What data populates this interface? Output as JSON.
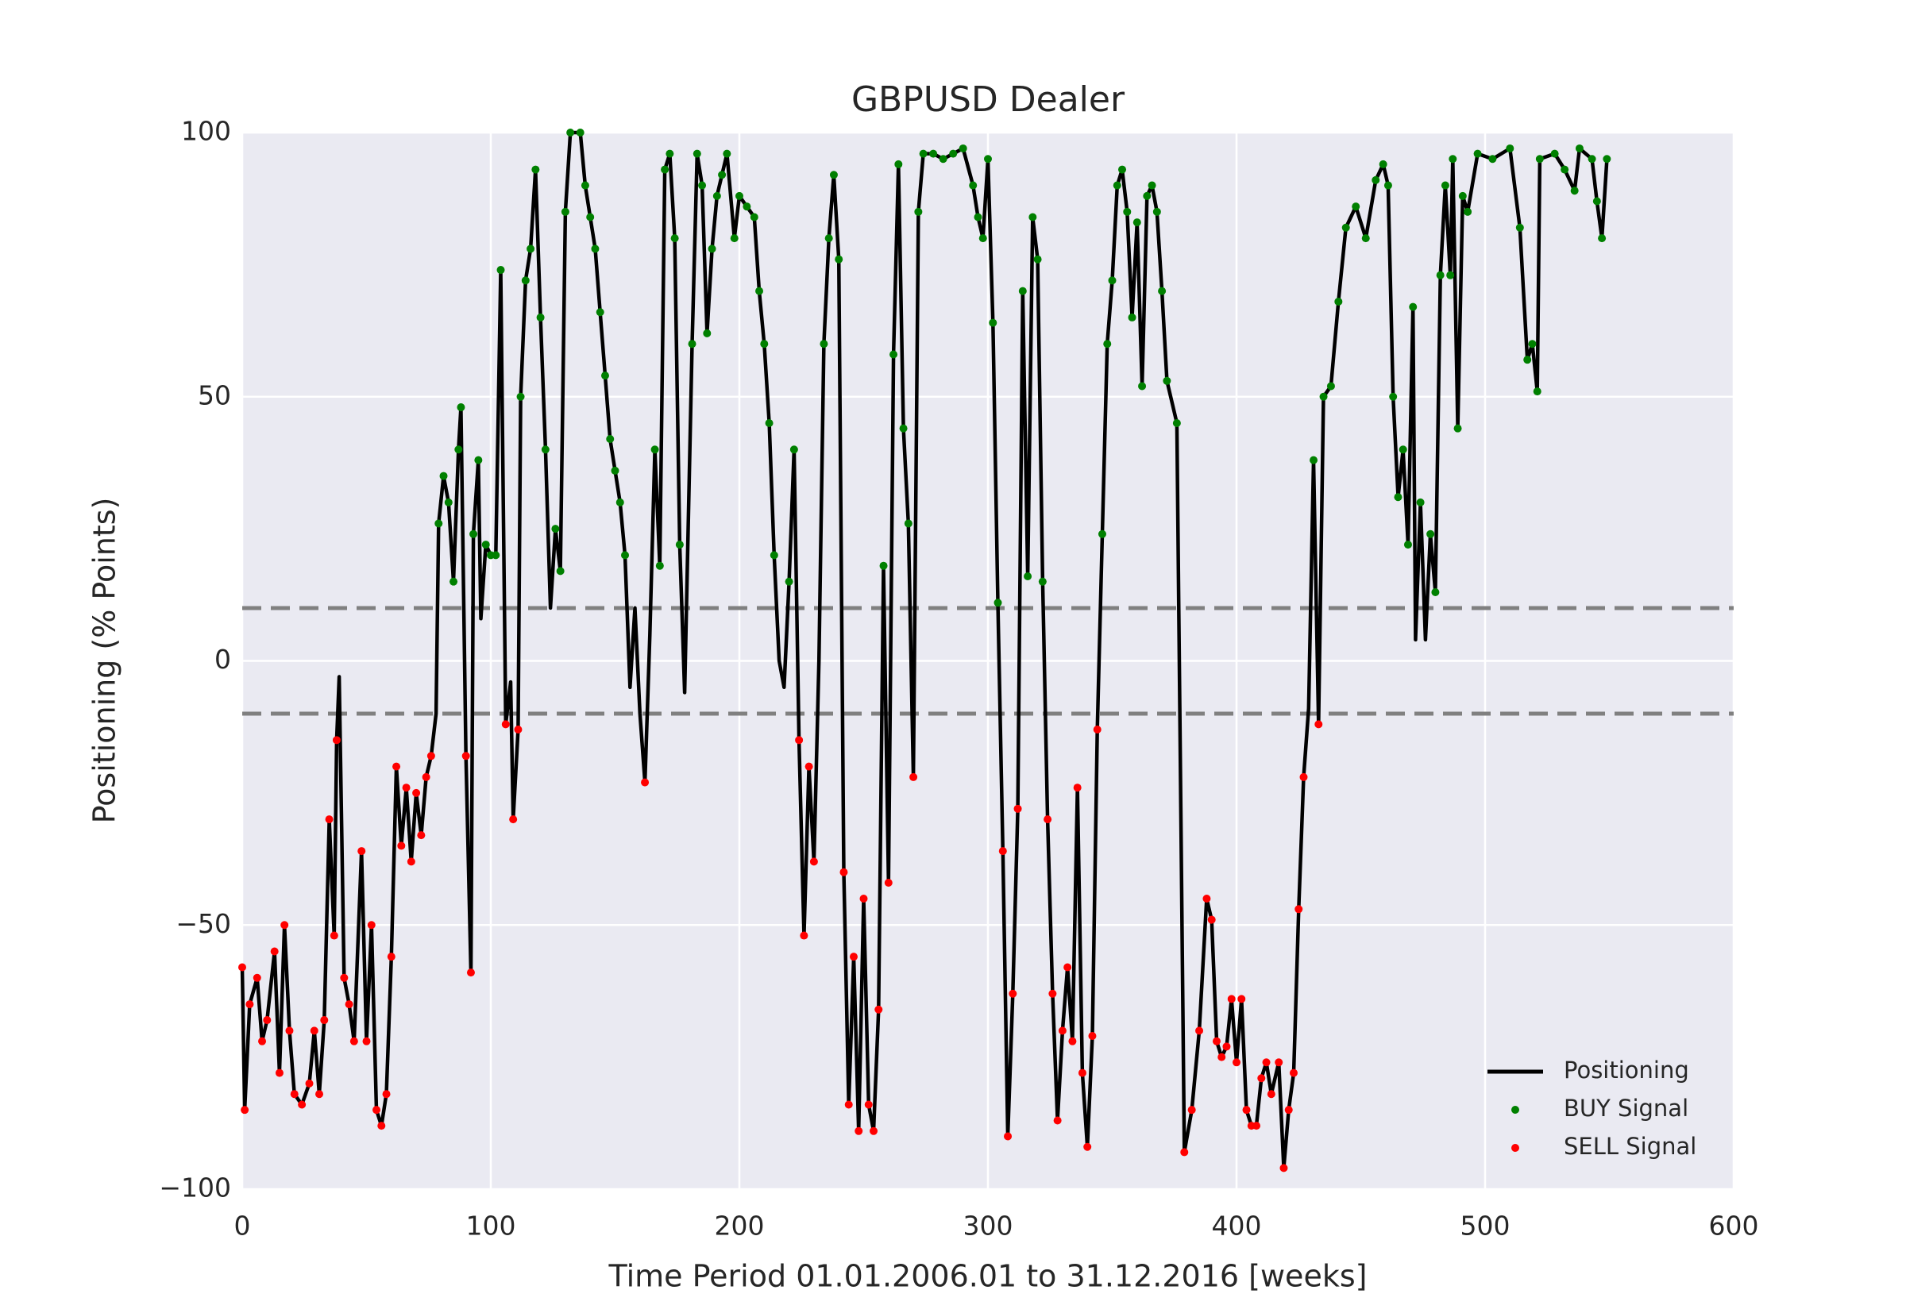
{
  "chart_data": {
    "type": "line",
    "title": "GBPUSD Dealer",
    "xlabel": "Time Period 01.01.2006.01 to 31.12.2016 [weeks]",
    "ylabel": "Positioning (% Points)",
    "xlim": [
      0,
      600
    ],
    "xticks": [
      0,
      100,
      200,
      300,
      400,
      500,
      600
    ],
    "ylim": [
      -100,
      100
    ],
    "yticks": [
      {
        "value": -100,
        "label": "−100"
      },
      {
        "value": -50,
        "label": "−50"
      },
      0,
      50,
      100
    ],
    "grid": true,
    "legend": "lower right",
    "hlines": [
      10,
      -10
    ],
    "hline_color": "#808080",
    "series": [
      {
        "name": "Positioning",
        "type": "line",
        "color": "#000000",
        "x": [
          0,
          1,
          3,
          6,
          8,
          10,
          13,
          15,
          17,
          19,
          21,
          24,
          27,
          29,
          31,
          33,
          35,
          37,
          38,
          39,
          41,
          43,
          45,
          48,
          50,
          52,
          54,
          56,
          58,
          60,
          62,
          64,
          66,
          68,
          70,
          72,
          74,
          76,
          78,
          79,
          81,
          83,
          85,
          87,
          88,
          90,
          92,
          93,
          95,
          96,
          98,
          100,
          102,
          104,
          106,
          108,
          109,
          111,
          112,
          114,
          116,
          118,
          120,
          122,
          124,
          126,
          128,
          130,
          132,
          136,
          138,
          140,
          142,
          144,
          146,
          148,
          150,
          152,
          154,
          156,
          158,
          160,
          162,
          164,
          166,
          168,
          170,
          172,
          174,
          176,
          178,
          181,
          183,
          185,
          187,
          189,
          191,
          193,
          195,
          198,
          200,
          203,
          206,
          208,
          210,
          212,
          214,
          216,
          218,
          220,
          222,
          224,
          226,
          228,
          230,
          232,
          234,
          236,
          238,
          240,
          242,
          244,
          246,
          248,
          250,
          252,
          254,
          256,
          258,
          260,
          262,
          264,
          266,
          268,
          270,
          272,
          274,
          278,
          282,
          286,
          290,
          294,
          296,
          298,
          300,
          302,
          304,
          306,
          308,
          310,
          312,
          314,
          316,
          318,
          320,
          322,
          324,
          326,
          328,
          330,
          332,
          334,
          336,
          338,
          340,
          342,
          344,
          346,
          348,
          350,
          352,
          354,
          356,
          358,
          360,
          362,
          364,
          366,
          368,
          370,
          372,
          376,
          379,
          382,
          385,
          388,
          390,
          392,
          394,
          396,
          398,
          400,
          402,
          404,
          406,
          408,
          410,
          412,
          414,
          417,
          419,
          421,
          423,
          425,
          427,
          429,
          431,
          433,
          435,
          438,
          441,
          444,
          448,
          452,
          456,
          459,
          461,
          463,
          465,
          467,
          469,
          471,
          472,
          474,
          476,
          478,
          480,
          482,
          484,
          486,
          487,
          489,
          491,
          493,
          497,
          503,
          510,
          514,
          517,
          519,
          521,
          522,
          528,
          532,
          536,
          538,
          543,
          545,
          547,
          549
        ],
        "values": [
          -58,
          -85,
          -65,
          -60,
          -72,
          -68,
          -55,
          -78,
          -50,
          -70,
          -82,
          -84,
          -80,
          -70,
          -82,
          -68,
          -30,
          -52,
          -15,
          -3,
          -60,
          -65,
          -72,
          -36,
          -72,
          -50,
          -85,
          -88,
          -82,
          -56,
          -20,
          -35,
          -24,
          -38,
          -25,
          -33,
          -22,
          -18,
          -10,
          26,
          35,
          30,
          15,
          40,
          48,
          -18,
          -59,
          24,
          38,
          8,
          22,
          20,
          20,
          74,
          -12,
          -4,
          -30,
          -13,
          50,
          72,
          78,
          93,
          65,
          40,
          10,
          25,
          17,
          85,
          100,
          100,
          90,
          84,
          78,
          66,
          54,
          42,
          36,
          30,
          20,
          -5,
          10,
          -10,
          -23,
          5,
          40,
          18,
          93,
          96,
          80,
          22,
          -6,
          60,
          96,
          90,
          62,
          78,
          88,
          92,
          96,
          80,
          88,
          86,
          84,
          70,
          60,
          45,
          20,
          0,
          -5,
          15,
          40,
          -15,
          -52,
          -20,
          -38,
          0,
          60,
          80,
          92,
          76,
          -40,
          -84,
          -56,
          -89,
          -45,
          -84,
          -89,
          -66,
          18,
          -42,
          58,
          94,
          44,
          26,
          -22,
          85,
          96,
          96,
          95,
          96,
          97,
          90,
          84,
          80,
          95,
          64,
          11,
          -36,
          -90,
          -63,
          -28,
          70,
          16,
          84,
          76,
          15,
          -30,
          -63,
          -87,
          -70,
          -58,
          -72,
          -24,
          -78,
          -92,
          -71,
          -13,
          24,
          60,
          72,
          90,
          93,
          85,
          65,
          83,
          52,
          88,
          90,
          85,
          70,
          53,
          45,
          -93,
          -85,
          -70,
          -45,
          -49,
          -72,
          -75,
          -73,
          -64,
          -76,
          -64,
          -85,
          -88,
          -88,
          -79,
          -76,
          -82,
          -76,
          -96,
          -85,
          -78,
          -47,
          -22,
          -9,
          38,
          -12,
          50,
          52,
          68,
          82,
          86,
          80,
          91,
          94,
          90,
          50,
          31,
          40,
          22,
          67,
          4,
          30,
          4,
          24,
          13,
          73,
          90,
          73,
          95,
          44,
          88,
          85,
          96,
          95,
          97,
          82,
          57,
          60,
          51,
          95,
          96,
          93,
          89,
          97,
          95,
          87,
          80,
          95
        ]
      },
      {
        "name": "BUY Signal",
        "type": "scatter",
        "color": "#008000",
        "x": [
          79,
          81,
          83,
          85,
          87,
          88,
          93,
          95,
          98,
          100,
          102,
          104,
          112,
          114,
          116,
          118,
          120,
          122,
          126,
          128,
          130,
          132,
          136,
          138,
          140,
          142,
          144,
          146,
          148,
          150,
          152,
          154,
          166,
          168,
          170,
          172,
          174,
          176,
          181,
          183,
          185,
          187,
          189,
          191,
          193,
          195,
          198,
          200,
          203,
          206,
          208,
          210,
          212,
          214,
          220,
          222,
          234,
          236,
          238,
          240,
          258,
          262,
          264,
          266,
          268,
          272,
          274,
          278,
          282,
          286,
          290,
          294,
          296,
          298,
          300,
          302,
          304,
          314,
          316,
          318,
          320,
          322,
          346,
          348,
          350,
          352,
          354,
          356,
          358,
          360,
          362,
          364,
          366,
          368,
          370,
          372,
          376,
          431,
          435,
          438,
          441,
          444,
          448,
          452,
          456,
          459,
          461,
          463,
          465,
          467,
          469,
          471,
          474,
          478,
          480,
          482,
          484,
          486,
          487,
          489,
          491,
          493,
          497,
          503,
          510,
          514,
          517,
          519,
          521,
          522,
          528,
          532,
          536,
          538,
          543,
          545,
          547,
          549
        ],
        "values": [
          26,
          35,
          30,
          15,
          40,
          48,
          24,
          38,
          22,
          20,
          20,
          74,
          50,
          72,
          78,
          93,
          65,
          40,
          25,
          17,
          85,
          100,
          100,
          90,
          84,
          78,
          66,
          54,
          42,
          36,
          30,
          20,
          40,
          18,
          93,
          96,
          80,
          22,
          60,
          96,
          90,
          62,
          78,
          88,
          92,
          96,
          80,
          88,
          86,
          84,
          70,
          60,
          45,
          20,
          15,
          40,
          60,
          80,
          92,
          76,
          18,
          58,
          94,
          44,
          26,
          85,
          96,
          96,
          95,
          96,
          97,
          90,
          84,
          80,
          95,
          64,
          11,
          70,
          16,
          84,
          76,
          15,
          24,
          60,
          72,
          90,
          93,
          85,
          65,
          83,
          52,
          88,
          90,
          85,
          70,
          53,
          45,
          38,
          50,
          52,
          68,
          82,
          86,
          80,
          91,
          94,
          90,
          50,
          31,
          40,
          22,
          67,
          30,
          24,
          13,
          73,
          90,
          73,
          95,
          44,
          88,
          85,
          96,
          95,
          97,
          82,
          57,
          60,
          51,
          95,
          96,
          93,
          89,
          97,
          95,
          87,
          80,
          95
        ]
      },
      {
        "name": "SELL Signal",
        "type": "scatter",
        "color": "#ff0000",
        "x": [
          0,
          1,
          3,
          6,
          8,
          10,
          13,
          15,
          17,
          19,
          21,
          24,
          27,
          29,
          31,
          33,
          35,
          37,
          38,
          41,
          43,
          45,
          48,
          50,
          52,
          54,
          56,
          58,
          60,
          62,
          64,
          66,
          68,
          70,
          72,
          74,
          76,
          90,
          92,
          106,
          109,
          111,
          162,
          224,
          226,
          228,
          230,
          242,
          244,
          246,
          248,
          250,
          252,
          254,
          256,
          260,
          270,
          306,
          308,
          310,
          312,
          324,
          326,
          328,
          330,
          332,
          334,
          336,
          338,
          340,
          342,
          344,
          379,
          382,
          385,
          388,
          390,
          392,
          394,
          396,
          398,
          400,
          402,
          404,
          406,
          408,
          410,
          412,
          414,
          417,
          419,
          421,
          423,
          425,
          427,
          433
        ],
        "values": [
          -58,
          -85,
          -65,
          -60,
          -72,
          -68,
          -55,
          -78,
          -50,
          -70,
          -82,
          -84,
          -80,
          -70,
          -82,
          -68,
          -30,
          -52,
          -15,
          -60,
          -65,
          -72,
          -36,
          -72,
          -50,
          -85,
          -88,
          -82,
          -56,
          -20,
          -35,
          -24,
          -38,
          -25,
          -33,
          -22,
          -18,
          -18,
          -59,
          -12,
          -30,
          -13,
          -23,
          -15,
          -52,
          -20,
          -38,
          -40,
          -84,
          -56,
          -89,
          -45,
          -84,
          -89,
          -66,
          -42,
          -22,
          -36,
          -90,
          -63,
          -28,
          -30,
          -63,
          -87,
          -70,
          -58,
          -72,
          -24,
          -78,
          -92,
          -71,
          -13,
          -93,
          -85,
          -70,
          -45,
          -49,
          -72,
          -75,
          -73,
          -64,
          -76,
          -64,
          -85,
          -88,
          -88,
          -79,
          -76,
          -82,
          -76,
          -96,
          -85,
          -78,
          -47,
          -22,
          -12
        ]
      }
    ]
  }
}
